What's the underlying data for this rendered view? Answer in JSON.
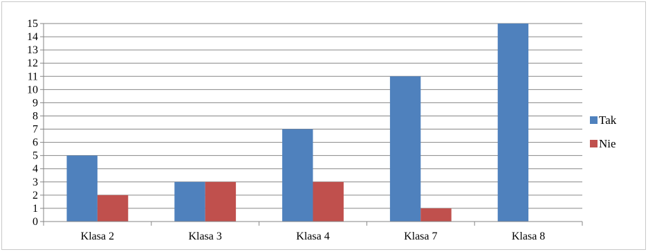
{
  "chart_data": {
    "type": "bar",
    "title": "",
    "xlabel": "",
    "ylabel": "",
    "categories": [
      "Klasa 2",
      "Klasa 3",
      "Klasa 4",
      "Klasa 7",
      "Klasa 8"
    ],
    "series": [
      {
        "name": "Tak",
        "color": "#4F81BD",
        "values": [
          5,
          3,
          7,
          11,
          15
        ]
      },
      {
        "name": "Nie",
        "color": "#C0504D",
        "values": [
          2,
          3,
          3,
          1,
          0
        ]
      }
    ],
    "ylim": [
      0,
      15
    ],
    "yticks": [
      "0",
      "1",
      "2",
      "3",
      "4",
      "5",
      "6",
      "7",
      "8",
      "9",
      "10",
      "11",
      "12",
      "13",
      "14",
      "15"
    ],
    "grid": true,
    "legend_position": "right"
  }
}
